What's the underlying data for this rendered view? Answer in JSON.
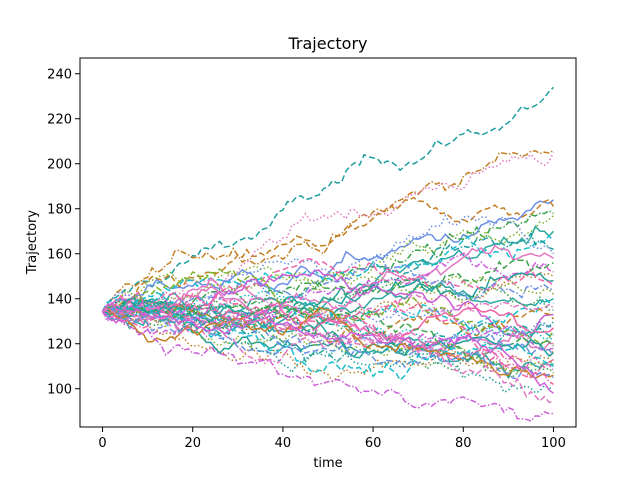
{
  "chart_data": {
    "type": "line",
    "title": "Trajectory",
    "xlabel": "time",
    "ylabel": "Trajectory",
    "xlim": [
      -5,
      105
    ],
    "ylim": [
      83,
      247
    ],
    "x_ticks": [
      0,
      20,
      40,
      60,
      80,
      100
    ],
    "y_ticks": [
      100,
      120,
      140,
      160,
      180,
      200,
      220,
      240
    ],
    "grid": false,
    "legend": "none",
    "start_value": 134.5,
    "time_steps": 100,
    "series_count": 50,
    "palette": [
      "#e377c2",
      "#1f9e9e",
      "#6b8fe3",
      "#3aa34a",
      "#c47f25",
      "#17becf",
      "#cc5fd9",
      "#f062a6",
      "#7fb02a",
      "#2ca7a0"
    ],
    "line_styles": [
      "dashed",
      "dashdot",
      "dotted",
      "solid"
    ],
    "series_endpoints": [
      {
        "color": "#1f9e9e",
        "end": 234,
        "peak": 240
      },
      {
        "color": "#c47f25",
        "end": 206,
        "peak": 208
      },
      {
        "color": "#e377c2",
        "end": 205,
        "peak": 207
      },
      {
        "color": "#6b8fe3",
        "end": 184,
        "peak": 192
      },
      {
        "color": "#c47f25",
        "end": 181,
        "peak": 182
      },
      {
        "color": "#3aa34a",
        "end": 178,
        "peak": 180
      },
      {
        "color": "#7fb02a",
        "end": 177,
        "peak": 179
      },
      {
        "color": "#2ca7a0",
        "end": 170,
        "peak": 174
      },
      {
        "color": "#17becf",
        "end": 166,
        "peak": 170
      },
      {
        "color": "#1f9e9e",
        "end": 162,
        "peak": 168
      },
      {
        "color": "#6b8fe3",
        "end": 160,
        "peak": 166
      },
      {
        "color": "#e377c2",
        "end": 158,
        "peak": 170
      },
      {
        "color": "#3aa34a",
        "end": 156,
        "peak": 176
      },
      {
        "color": "#cc5fd9",
        "end": 152,
        "peak": 162
      },
      {
        "color": "#c47f25",
        "end": 150,
        "peak": 178
      },
      {
        "color": "#1f9e9e",
        "end": 148,
        "peak": 162
      },
      {
        "color": "#f062a6",
        "end": 146,
        "peak": 172
      },
      {
        "color": "#6b8fe3",
        "end": 144,
        "peak": 183
      },
      {
        "color": "#7fb02a",
        "end": 142,
        "peak": 158
      },
      {
        "color": "#2ca7a0",
        "end": 140,
        "peak": 160
      },
      {
        "color": "#17becf",
        "end": 138,
        "peak": 156
      },
      {
        "color": "#e377c2",
        "end": 136,
        "peak": 154
      },
      {
        "color": "#3aa34a",
        "end": 135,
        "peak": 155
      },
      {
        "color": "#cc5fd9",
        "end": 133,
        "peak": 150
      },
      {
        "color": "#c47f25",
        "end": 131,
        "peak": 152
      },
      {
        "color": "#1f9e9e",
        "end": 130,
        "peak": 150
      },
      {
        "color": "#6b8fe3",
        "end": 128,
        "peak": 149
      },
      {
        "color": "#f062a6",
        "end": 127,
        "peak": 148
      },
      {
        "color": "#7fb02a",
        "end": 126,
        "peak": 150
      },
      {
        "color": "#2ca7a0",
        "end": 124,
        "peak": 146
      },
      {
        "color": "#17becf",
        "end": 122,
        "peak": 147
      },
      {
        "color": "#e377c2",
        "end": 120,
        "peak": 146
      },
      {
        "color": "#3aa34a",
        "end": 119,
        "peak": 148
      },
      {
        "color": "#cc5fd9",
        "end": 118,
        "peak": 144
      },
      {
        "color": "#c47f25",
        "end": 117,
        "peak": 146
      },
      {
        "color": "#1f9e9e",
        "end": 116,
        "peak": 143
      },
      {
        "color": "#6b8fe3",
        "end": 115,
        "peak": 145
      },
      {
        "color": "#f062a6",
        "end": 113,
        "peak": 142
      },
      {
        "color": "#7fb02a",
        "end": 112,
        "peak": 144
      },
      {
        "color": "#2ca7a0",
        "end": 111,
        "peak": 141
      },
      {
        "color": "#17becf",
        "end": 110,
        "peak": 142
      },
      {
        "color": "#e377c2",
        "end": 108,
        "peak": 140
      },
      {
        "color": "#3aa34a",
        "end": 107,
        "peak": 141
      },
      {
        "color": "#c47f25",
        "end": 106,
        "peak": 142
      },
      {
        "color": "#6b8fe3",
        "end": 105,
        "peak": 140
      },
      {
        "color": "#f062a6",
        "end": 102,
        "peak": 139
      },
      {
        "color": "#1f9e9e",
        "end": 100,
        "peak": 139
      },
      {
        "color": "#cc5fd9",
        "end": 98,
        "peak": 138
      },
      {
        "color": "#e377c2",
        "end": 94,
        "peak": 138
      },
      {
        "color": "#cc5fd9",
        "end": 89,
        "peak": 137
      }
    ]
  }
}
